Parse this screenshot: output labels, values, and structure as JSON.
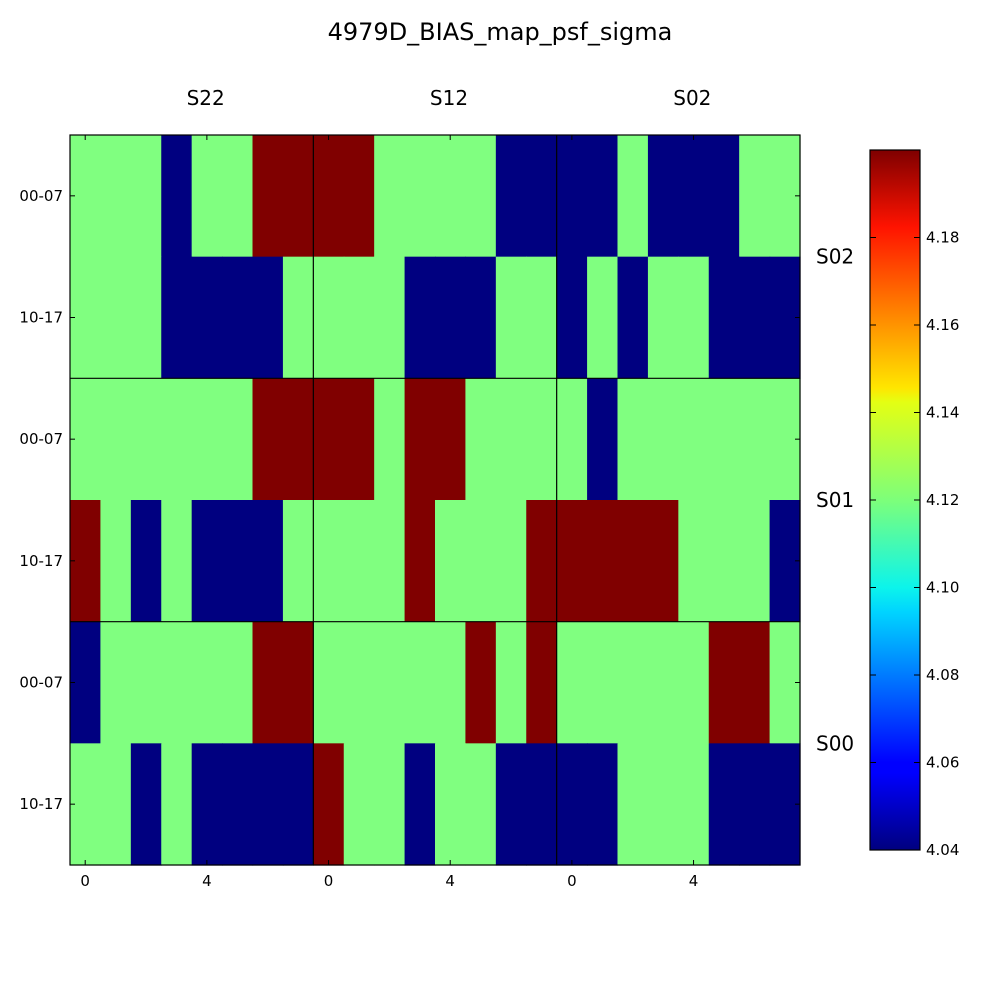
{
  "chart_data": {
    "type": "heatmap",
    "title": "4979D_BIAS_map_psf_sigma",
    "column_groups": [
      "S22",
      "S12",
      "S02"
    ],
    "row_groups": [
      "S02",
      "S01",
      "S00"
    ],
    "x_tick_labels": [
      "0",
      "4",
      "0",
      "4",
      "0",
      "4"
    ],
    "y_tick_labels": [
      "00-07",
      "10-17",
      "00-07",
      "10-17",
      "00-07",
      "10-17"
    ],
    "colormap": "jet",
    "vmin": 4.04,
    "vmax": 4.2,
    "colorbar_ticks": [
      "4.04",
      "4.06",
      "4.08",
      "4.10",
      "4.12",
      "4.14",
      "4.16",
      "4.18"
    ],
    "level_values": {
      "low": 4.04,
      "mid": 4.12,
      "high": 4.2
    },
    "grid": [
      [
        "mid",
        "mid",
        "mid",
        "low",
        "mid",
        "mid",
        "high",
        "high",
        "high",
        "high",
        "mid",
        "mid",
        "mid",
        "mid",
        "low",
        "low",
        "low",
        "low",
        "mid",
        "low",
        "low",
        "low",
        "mid",
        "mid"
      ],
      [
        "mid",
        "mid",
        "mid",
        "low",
        "low",
        "low",
        "low",
        "mid",
        "mid",
        "mid",
        "mid",
        "low",
        "low",
        "low",
        "mid",
        "mid",
        "low",
        "mid",
        "low",
        "mid",
        "mid",
        "low",
        "low",
        "low"
      ],
      [
        "mid",
        "mid",
        "mid",
        "mid",
        "mid",
        "mid",
        "high",
        "high",
        "high",
        "high",
        "mid",
        "high",
        "high",
        "mid",
        "mid",
        "mid",
        "mid",
        "low",
        "mid",
        "mid",
        "mid",
        "mid",
        "mid",
        "mid"
      ],
      [
        "high",
        "mid",
        "low",
        "mid",
        "low",
        "low",
        "low",
        "mid",
        "mid",
        "mid",
        "mid",
        "high",
        "mid",
        "mid",
        "mid",
        "high",
        "high",
        "high",
        "high",
        "high",
        "mid",
        "mid",
        "mid",
        "low"
      ],
      [
        "low",
        "mid",
        "mid",
        "mid",
        "mid",
        "mid",
        "high",
        "high",
        "mid",
        "mid",
        "mid",
        "mid",
        "mid",
        "high",
        "mid",
        "high",
        "mid",
        "mid",
        "mid",
        "mid",
        "mid",
        "high",
        "high",
        "mid"
      ],
      [
        "mid",
        "mid",
        "low",
        "mid",
        "low",
        "low",
        "low",
        "low",
        "high",
        "mid",
        "mid",
        "low",
        "mid",
        "mid",
        "low",
        "low",
        "low",
        "low",
        "mid",
        "mid",
        "mid",
        "low",
        "low",
        "low"
      ]
    ]
  }
}
